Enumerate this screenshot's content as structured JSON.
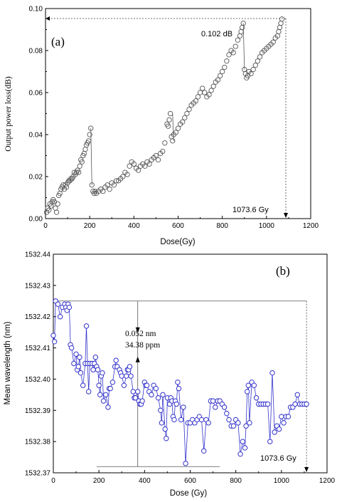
{
  "chart_data": [
    {
      "type": "scatter",
      "panel_label": "(a)",
      "xlabel": "Dose(Gy)",
      "ylabel": "Output power loss(dB)",
      "xlim": [
        0,
        1200
      ],
      "ylim": [
        0.0,
        0.1
      ],
      "xticks": [
        "0",
        "200",
        "400",
        "600",
        "800",
        "1000",
        "1200"
      ],
      "yticks": [
        "0.00",
        "0.02",
        "0.04",
        "0.06",
        "0.08",
        "0.10"
      ],
      "annotations": {
        "peak_label": "0.102 dB",
        "dose_label": "1073.6 Gy"
      },
      "marker_color": "#555555",
      "series": [
        {
          "x": [
            5,
            10,
            15,
            20,
            25,
            30,
            35,
            40,
            45,
            50,
            55,
            60,
            65,
            70,
            75,
            80,
            85,
            90,
            95,
            100,
            105,
            110,
            115,
            120,
            125,
            130,
            135,
            140,
            145,
            150,
            155,
            160,
            165,
            170,
            175,
            180,
            185,
            190,
            195,
            200,
            205,
            210,
            215,
            220,
            225,
            230,
            240,
            250,
            260,
            270,
            280,
            290,
            300,
            310,
            320,
            330,
            340,
            350,
            360,
            370,
            380,
            390,
            400,
            410,
            420,
            430,
            440,
            450,
            460,
            470,
            480,
            490,
            500,
            510,
            520,
            530,
            540,
            550,
            555,
            560,
            565,
            570,
            575,
            580,
            590,
            600,
            610,
            620,
            630,
            640,
            650,
            660,
            670,
            680,
            690,
            700,
            710,
            720,
            730,
            740,
            750,
            760,
            770,
            780,
            790,
            800,
            810,
            820,
            830,
            840,
            850,
            860,
            870,
            880,
            885,
            890,
            895,
            900,
            905,
            910,
            915,
            920,
            930,
            940,
            950,
            960,
            970,
            980,
            990,
            1000,
            1010,
            1020,
            1030,
            1040,
            1050,
            1055,
            1060,
            1065,
            1070
          ],
          "y": [
            0.003,
            0.005,
            0.004,
            0.007,
            0.006,
            0.008,
            0.009,
            0.008,
            0.005,
            0.003,
            0.007,
            0.011,
            0.012,
            0.014,
            0.015,
            0.016,
            0.014,
            0.016,
            0.015,
            0.017,
            0.018,
            0.018,
            0.019,
            0.019,
            0.02,
            0.022,
            0.021,
            0.022,
            0.023,
            0.022,
            0.025,
            0.028,
            0.027,
            0.03,
            0.031,
            0.033,
            0.035,
            0.036,
            0.037,
            0.04,
            0.043,
            0.016,
            0.013,
            0.012,
            0.013,
            0.012,
            0.013,
            0.014,
            0.013,
            0.015,
            0.016,
            0.014,
            0.017,
            0.016,
            0.018,
            0.018,
            0.019,
            0.02,
            0.022,
            0.021,
            0.025,
            0.027,
            0.026,
            0.024,
            0.023,
            0.025,
            0.026,
            0.025,
            0.027,
            0.026,
            0.028,
            0.029,
            0.03,
            0.028,
            0.031,
            0.032,
            0.036,
            0.045,
            0.044,
            0.047,
            0.05,
            0.039,
            0.037,
            0.04,
            0.041,
            0.043,
            0.045,
            0.046,
            0.048,
            0.05,
            0.052,
            0.054,
            0.055,
            0.056,
            0.058,
            0.06,
            0.062,
            0.06,
            0.058,
            0.059,
            0.061,
            0.063,
            0.065,
            0.066,
            0.068,
            0.07,
            0.072,
            0.075,
            0.078,
            0.08,
            0.079,
            0.082,
            0.085,
            0.087,
            0.089,
            0.091,
            0.093,
            0.071,
            0.069,
            0.067,
            0.068,
            0.07,
            0.069,
            0.071,
            0.073,
            0.075,
            0.077,
            0.079,
            0.08,
            0.081,
            0.082,
            0.083,
            0.084,
            0.086,
            0.087,
            0.089,
            0.091,
            0.093,
            0.095
          ]
        }
      ]
    },
    {
      "type": "line",
      "panel_label": "(b)",
      "xlabel": "Dose (Gy)",
      "ylabel": "Mean wavelength (nm)",
      "xlim": [
        0,
        1200
      ],
      "ylim": [
        1532.37,
        1532.44
      ],
      "xticks": [
        "0",
        "200",
        "400",
        "600",
        "800",
        "1000",
        "1200"
      ],
      "yticks": [
        "1532.37",
        "1532.38",
        "1532.39",
        "1532.40",
        "1532.41",
        "1532.42",
        "1532.43",
        "1532.44"
      ],
      "annotations": {
        "delta_nm": "0.052 nm",
        "delta_ppm": "34.38 ppm",
        "dose_label": "1073.6 Gy"
      },
      "line_color": "#3333cc",
      "series": [
        {
          "x": [
            0,
            5,
            10,
            20,
            30,
            40,
            50,
            55,
            60,
            65,
            70,
            75,
            80,
            90,
            100,
            105,
            110,
            115,
            120,
            130,
            140,
            145,
            150,
            155,
            160,
            170,
            175,
            180,
            185,
            190,
            195,
            200,
            205,
            210,
            215,
            220,
            230,
            240,
            245,
            250,
            260,
            270,
            275,
            280,
            290,
            295,
            300,
            310,
            320,
            325,
            330,
            335,
            340,
            350,
            355,
            360,
            370,
            375,
            380,
            385,
            390,
            400,
            405,
            410,
            420,
            430,
            440,
            450,
            460,
            470,
            475,
            480,
            490,
            495,
            500,
            510,
            515,
            520,
            525,
            530,
            535,
            540,
            545,
            550,
            560,
            570,
            580,
            590,
            600,
            610,
            620,
            630,
            640,
            650,
            660,
            670,
            680,
            690,
            700,
            710,
            720,
            730,
            740,
            750,
            760,
            770,
            780,
            790,
            800,
            810,
            820,
            830,
            840,
            845,
            850,
            855,
            860,
            870,
            880,
            890,
            900,
            910,
            920,
            930,
            940,
            950,
            960,
            970,
            980,
            990,
            1000,
            1010,
            1020,
            1030,
            1040,
            1050,
            1060,
            1070,
            1080,
            1090,
            1100,
            1110
          ],
          "y": [
            1532.414,
            1532.412,
            1532.425,
            1532.424,
            1532.42,
            1532.423,
            1532.424,
            1532.423,
            1532.422,
            1532.424,
            1532.423,
            1532.411,
            1532.41,
            1532.405,
            1532.408,
            1532.403,
            1532.404,
            1532.407,
            1532.402,
            1532.398,
            1532.405,
            1532.417,
            1532.405,
            1532.396,
            1532.405,
            1532.405,
            1532.403,
            1532.405,
            1532.407,
            1532.404,
            1532.403,
            1532.398,
            1532.395,
            1532.401,
            1532.402,
            1532.393,
            1532.395,
            1532.391,
            1532.397,
            1532.397,
            1532.399,
            1532.404,
            1532.406,
            1532.404,
            1532.403,
            1532.402,
            1532.401,
            1532.398,
            1532.401,
            1532.403,
            1532.403,
            1532.404,
            1532.401,
            1532.396,
            1532.394,
            1532.394,
            1532.396,
            1532.393,
            1532.392,
            1532.392,
            1532.393,
            1532.399,
            1532.398,
            1532.398,
            1532.396,
            1532.395,
            1532.398,
            1532.397,
            1532.394,
            1532.39,
            1532.386,
            1532.395,
            1532.384,
            1532.381,
            1532.394,
            1532.392,
            1532.394,
            1532.393,
            1532.388,
            1532.387,
            1532.393,
            1532.392,
            1532.399,
            1532.397,
            1532.387,
            1532.391,
            1532.373,
            1532.386,
            1532.386,
            1532.387,
            1532.386,
            1532.387,
            1532.388,
            1532.387,
            1532.377,
            1532.387,
            1532.386,
            1532.393,
            1532.393,
            1532.391,
            1532.393,
            1532.393,
            1532.392,
            1532.391,
            1532.389,
            1532.387,
            1532.385,
            1532.385,
            1532.387,
            1532.386,
            1532.376,
            1532.38,
            1532.378,
            1532.385,
            1532.396,
            1532.398,
            1532.386,
            1532.399,
            1532.398,
            1532.394,
            1532.392,
            1532.392,
            1532.392,
            1532.392,
            1532.392,
            1532.38,
            1532.402,
            1532.383,
            1532.385,
            1532.384,
            1532.388,
            1532.386,
            1532.388,
            1532.388,
            1532.391,
            1532.391,
            1532.392,
            1532.395,
            1532.392,
            1532.392,
            1532.392,
            1532.392
          ]
        }
      ]
    }
  ]
}
